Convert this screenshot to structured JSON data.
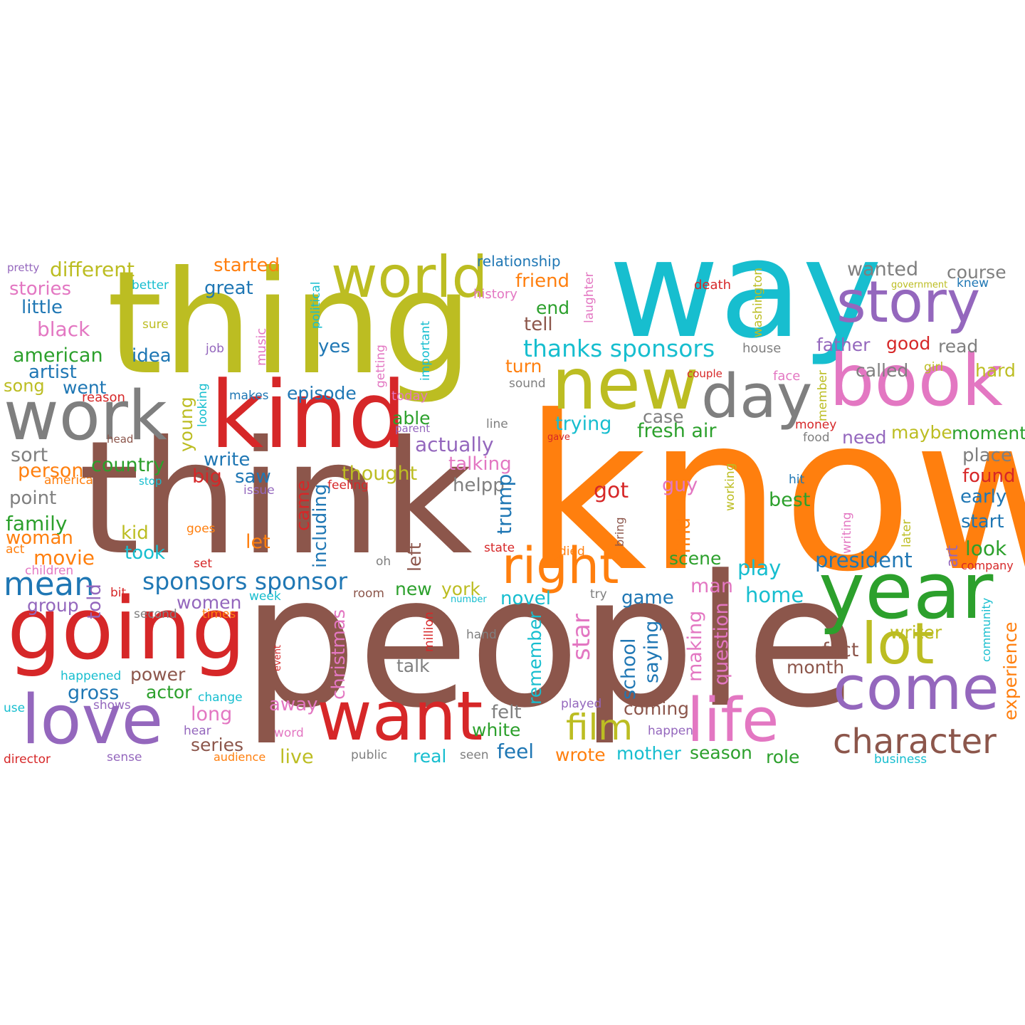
{
  "words": [
    {
      "t": "know",
      "c": "#ff7f0e"
    },
    {
      "t": "people",
      "c": "#8c564b"
    },
    {
      "t": "think",
      "c": "#8c564b"
    },
    {
      "t": "way",
      "c": "#17becf"
    },
    {
      "t": "thing",
      "c": "#bcbd22"
    },
    {
      "t": "kind",
      "c": "#d62728"
    },
    {
      "t": "going",
      "c": "#d62728"
    },
    {
      "t": "year",
      "c": "#2ca02c"
    },
    {
      "t": "book",
      "c": "#e377c2"
    },
    {
      "t": "new",
      "c": "#bcbd22"
    },
    {
      "t": "work",
      "c": "#7f7f7f"
    },
    {
      "t": "story",
      "c": "#9467bd"
    },
    {
      "t": "come",
      "c": "#9467bd"
    },
    {
      "t": "want",
      "c": "#d62728"
    },
    {
      "t": "love",
      "c": "#9467bd"
    },
    {
      "t": "day",
      "c": "#7f7f7f"
    },
    {
      "t": "life",
      "c": "#e377c2"
    },
    {
      "t": "lot",
      "c": "#bcbd22"
    },
    {
      "t": "world",
      "c": "#bcbd22"
    },
    {
      "t": "right",
      "c": "#ff7f0e"
    },
    {
      "t": "character",
      "c": "#8c564b"
    },
    {
      "t": "film",
      "c": "#bcbd22"
    },
    {
      "t": "mean",
      "c": "#1f77b4"
    },
    {
      "t": "thanks sponsors",
      "c": "#17becf"
    },
    {
      "t": "sponsors sponsor",
      "c": "#1f77b4"
    },
    {
      "t": "different",
      "c": "#bcbd22"
    },
    {
      "t": "started",
      "c": "#ff7f0e"
    },
    {
      "t": "relationship",
      "c": "#1f77b4"
    },
    {
      "t": "wanted",
      "c": "#7f7f7f"
    },
    {
      "t": "course",
      "c": "#7f7f7f"
    },
    {
      "t": "stories",
      "c": "#e377c2"
    },
    {
      "t": "great",
      "c": "#1f77b4"
    },
    {
      "t": "little",
      "c": "#1f77b4"
    },
    {
      "t": "black",
      "c": "#e377c2"
    },
    {
      "t": "american",
      "c": "#2ca02c"
    },
    {
      "t": "idea",
      "c": "#1f77b4"
    },
    {
      "t": "artist",
      "c": "#1f77b4"
    },
    {
      "t": "song",
      "c": "#bcbd22"
    },
    {
      "t": "went",
      "c": "#1f77b4"
    },
    {
      "t": "friend",
      "c": "#ff7f0e"
    },
    {
      "t": "end",
      "c": "#2ca02c"
    },
    {
      "t": "tell",
      "c": "#8c564b"
    },
    {
      "t": "father",
      "c": "#9467bd"
    },
    {
      "t": "good",
      "c": "#d62728"
    },
    {
      "t": "read",
      "c": "#7f7f7f"
    },
    {
      "t": "called",
      "c": "#7f7f7f"
    },
    {
      "t": "hard",
      "c": "#bcbd22"
    },
    {
      "t": "turn",
      "c": "#ff7f0e"
    },
    {
      "t": "yes",
      "c": "#1f77b4"
    },
    {
      "t": "episode",
      "c": "#1f77b4"
    },
    {
      "t": "able",
      "c": "#2ca02c"
    },
    {
      "t": "trying",
      "c": "#17becf"
    },
    {
      "t": "case",
      "c": "#7f7f7f"
    },
    {
      "t": "fresh air",
      "c": "#2ca02c"
    },
    {
      "t": "need",
      "c": "#9467bd"
    },
    {
      "t": "maybe",
      "c": "#bcbd22"
    },
    {
      "t": "moment",
      "c": "#2ca02c"
    },
    {
      "t": "actually",
      "c": "#9467bd"
    },
    {
      "t": "place",
      "c": "#7f7f7f"
    },
    {
      "t": "sort",
      "c": "#7f7f7f"
    },
    {
      "t": "person",
      "c": "#ff7f0e"
    },
    {
      "t": "country",
      "c": "#2ca02c"
    },
    {
      "t": "write",
      "c": "#1f77b4"
    },
    {
      "t": "thought",
      "c": "#bcbd22"
    },
    {
      "t": "talking",
      "c": "#e377c2"
    },
    {
      "t": "found",
      "c": "#d62728"
    },
    {
      "t": "point",
      "c": "#7f7f7f"
    },
    {
      "t": "big",
      "c": "#d62728"
    },
    {
      "t": "saw",
      "c": "#1f77b4"
    },
    {
      "t": "helpp",
      "c": "#7f7f7f"
    },
    {
      "t": "got",
      "c": "#d62728"
    },
    {
      "t": "guy",
      "c": "#e377c2"
    },
    {
      "t": "early",
      "c": "#1f77b4"
    },
    {
      "t": "family",
      "c": "#2ca02c"
    },
    {
      "t": "best",
      "c": "#2ca02c"
    },
    {
      "t": "start",
      "c": "#1f77b4"
    },
    {
      "t": "woman",
      "c": "#ff7f0e"
    },
    {
      "t": "kid",
      "c": "#bcbd22"
    },
    {
      "t": "let",
      "c": "#ff7f0e"
    },
    {
      "t": "look",
      "c": "#2ca02c"
    },
    {
      "t": "movie",
      "c": "#ff7f0e"
    },
    {
      "t": "took",
      "c": "#17becf"
    },
    {
      "t": "scene",
      "c": "#2ca02c"
    },
    {
      "t": "president",
      "c": "#1f77b4"
    },
    {
      "t": "play",
      "c": "#17becf"
    },
    {
      "t": "women",
      "c": "#9467bd"
    },
    {
      "t": "new",
      "c": "#2ca02c"
    },
    {
      "t": "york",
      "c": "#bcbd22"
    },
    {
      "t": "man",
      "c": "#e377c2"
    },
    {
      "t": "home",
      "c": "#17becf"
    },
    {
      "t": "group",
      "c": "#9467bd"
    },
    {
      "t": "novel",
      "c": "#17becf"
    },
    {
      "t": "game",
      "c": "#1f77b4"
    },
    {
      "t": "writer",
      "c": "#bcbd22"
    },
    {
      "t": "fact",
      "c": "#8c564b"
    },
    {
      "t": "month",
      "c": "#8c564b"
    },
    {
      "t": "talk",
      "c": "#7f7f7f"
    },
    {
      "t": "gross",
      "c": "#1f77b4"
    },
    {
      "t": "power",
      "c": "#8c564b"
    },
    {
      "t": "actor",
      "c": "#2ca02c"
    },
    {
      "t": "long",
      "c": "#e377c2"
    },
    {
      "t": "away",
      "c": "#e377c2"
    },
    {
      "t": "felt",
      "c": "#7f7f7f"
    },
    {
      "t": "coming",
      "c": "#8c564b"
    },
    {
      "t": "white",
      "c": "#2ca02c"
    },
    {
      "t": "series",
      "c": "#8c564b"
    },
    {
      "t": "feel",
      "c": "#1f77b4"
    },
    {
      "t": "wrote",
      "c": "#ff7f0e"
    },
    {
      "t": "mother",
      "c": "#17becf"
    },
    {
      "t": "season",
      "c": "#2ca02c"
    },
    {
      "t": "role",
      "c": "#2ca02c"
    },
    {
      "t": "live",
      "c": "#bcbd22"
    },
    {
      "t": "real",
      "c": "#17becf"
    },
    {
      "t": "pretty",
      "c": "#9467bd"
    },
    {
      "t": "better",
      "c": "#17becf"
    },
    {
      "t": "sure",
      "c": "#bcbd22"
    },
    {
      "t": "job",
      "c": "#9467bd"
    },
    {
      "t": "reason",
      "c": "#d62728"
    },
    {
      "t": "makes",
      "c": "#1f77b4"
    },
    {
      "t": "today",
      "c": "#e377c2"
    },
    {
      "t": "parent",
      "c": "#9467bd"
    },
    {
      "t": "head",
      "c": "#8c564b"
    },
    {
      "t": "history",
      "c": "#e377c2"
    },
    {
      "t": "death",
      "c": "#d62728"
    },
    {
      "t": "government",
      "c": "#bcbd22"
    },
    {
      "t": "knew",
      "c": "#1f77b4"
    },
    {
      "t": "house",
      "c": "#7f7f7f"
    },
    {
      "t": "couple",
      "c": "#d62728"
    },
    {
      "t": "face",
      "c": "#e377c2"
    },
    {
      "t": "girl",
      "c": "#bcbd22"
    },
    {
      "t": "sound",
      "c": "#7f7f7f"
    },
    {
      "t": "line",
      "c": "#7f7f7f"
    },
    {
      "t": "gave",
      "c": "#d62728"
    },
    {
      "t": "money",
      "c": "#d62728"
    },
    {
      "t": "food",
      "c": "#7f7f7f"
    },
    {
      "t": "america",
      "c": "#ff7f0e"
    },
    {
      "t": "stop",
      "c": "#17becf"
    },
    {
      "t": "issue",
      "c": "#9467bd"
    },
    {
      "t": "feeling",
      "c": "#d62728"
    },
    {
      "t": "hit",
      "c": "#1f77b4"
    },
    {
      "t": "goes",
      "c": "#ff7f0e"
    },
    {
      "t": "act",
      "c": "#ff7f0e"
    },
    {
      "t": "state",
      "c": "#d62728"
    },
    {
      "t": "died",
      "c": "#ff7f0e"
    },
    {
      "t": "set",
      "c": "#d62728"
    },
    {
      "t": "oh",
      "c": "#7f7f7f"
    },
    {
      "t": "company",
      "c": "#d62728"
    },
    {
      "t": "children",
      "c": "#e377c2"
    },
    {
      "t": "bit",
      "c": "#d62728"
    },
    {
      "t": "week",
      "c": "#17becf"
    },
    {
      "t": "room",
      "c": "#8c564b"
    },
    {
      "t": "try",
      "c": "#7f7f7f"
    },
    {
      "t": "number",
      "c": "#17becf"
    },
    {
      "t": "second",
      "c": "#7f7f7f"
    },
    {
      "t": "times",
      "c": "#ff7f0e"
    },
    {
      "t": "hand",
      "c": "#7f7f7f"
    },
    {
      "t": "happened",
      "c": "#17becf"
    },
    {
      "t": "shows",
      "c": "#9467bd"
    },
    {
      "t": "change",
      "c": "#17becf"
    },
    {
      "t": "use",
      "c": "#17becf"
    },
    {
      "t": "played",
      "c": "#9467bd"
    },
    {
      "t": "hear",
      "c": "#9467bd"
    },
    {
      "t": "word",
      "c": "#e377c2"
    },
    {
      "t": "happen",
      "c": "#9467bd"
    },
    {
      "t": "director",
      "c": "#d62728"
    },
    {
      "t": "sense",
      "c": "#9467bd"
    },
    {
      "t": "audience",
      "c": "#ff7f0e"
    },
    {
      "t": "public",
      "c": "#7f7f7f"
    },
    {
      "t": "seen",
      "c": "#7f7f7f"
    },
    {
      "t": "business",
      "c": "#17becf"
    },
    {
      "t": "political",
      "c": "#17becf"
    },
    {
      "t": "important",
      "c": "#17becf"
    },
    {
      "t": "getting",
      "c": "#e377c2"
    },
    {
      "t": "music",
      "c": "#e377c2"
    },
    {
      "t": "looking",
      "c": "#17becf"
    },
    {
      "t": "young",
      "c": "#bcbd22"
    },
    {
      "t": "laughter",
      "c": "#e377c2"
    },
    {
      "t": "washington",
      "c": "#bcbd22"
    },
    {
      "t": "member",
      "c": "#bcbd22"
    },
    {
      "t": "including",
      "c": "#1f77b4"
    },
    {
      "t": "came",
      "c": "#d62728"
    },
    {
      "t": "trump",
      "c": "#1f77b4"
    },
    {
      "t": "left",
      "c": "#8c564b"
    },
    {
      "t": "find",
      "c": "#ff7f0e"
    },
    {
      "t": "bring",
      "c": "#8c564b"
    },
    {
      "t": "working",
      "c": "#bcbd22"
    },
    {
      "t": "writing",
      "c": "#e377c2"
    },
    {
      "t": "later",
      "c": "#bcbd22"
    },
    {
      "t": "art",
      "c": "#9467bd"
    },
    {
      "t": "told",
      "c": "#9467bd"
    },
    {
      "t": "christmas",
      "c": "#e377c2"
    },
    {
      "t": "million",
      "c": "#d62728"
    },
    {
      "t": "event",
      "c": "#d62728"
    },
    {
      "t": "remember",
      "c": "#17becf"
    },
    {
      "t": "star",
      "c": "#e377c2"
    },
    {
      "t": "school",
      "c": "#1f77b4"
    },
    {
      "t": "saying",
      "c": "#1f77b4"
    },
    {
      "t": "making",
      "c": "#e377c2"
    },
    {
      "t": "question",
      "c": "#e377c2"
    },
    {
      "t": "community",
      "c": "#17becf"
    },
    {
      "t": "experience",
      "c": "#ff7f0e"
    }
  ]
}
